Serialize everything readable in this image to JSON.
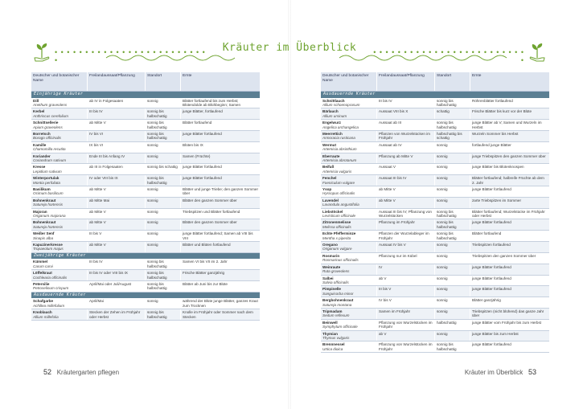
{
  "header": {
    "title": "Kräuter im Überblick"
  },
  "columns": [
    "Deutscher und botanischer Name",
    "Freilandaussaat/Pflanzung",
    "Standort",
    "Ernte"
  ],
  "left": {
    "sections": [
      {
        "label": "Einjährige Kräuter",
        "rows": [
          {
            "name": "Dill",
            "latin": "Anethum graveolens",
            "sow": "ab IV in Folgesaaten",
            "site": "sonnig",
            "harvest": "Blätter fortlaufend bis zum Herbst; Blütendolde ab Blühbeginn; Samen"
          },
          {
            "name": "Kerbel",
            "latin": "Anthriscus cerefolium",
            "sow": "III bis IV",
            "site": "sonnig bis halbschattig",
            "harvest": "junge Blätter, fortlaufend"
          },
          {
            "name": "Schnittsellerie",
            "latin": "Apium graveolens",
            "sow": "ab Mitte V",
            "site": "sonnig bis halbschattig",
            "harvest": "Blätter fortlaufend"
          },
          {
            "name": "Borretsch",
            "latin": "Borago officinalis",
            "sow": "IV bis VI",
            "site": "sonnig bis halbschattig",
            "harvest": "junge Blätter fortlaufend"
          },
          {
            "name": "Kamille",
            "latin": "Chamomilla recutita",
            "sow": "IX bis VI",
            "site": "sonnig",
            "harvest": "Blüten bis IX"
          },
          {
            "name": "Koriander",
            "latin": "Coriandrum sativum",
            "sow": "Ende III bis Anfang IV",
            "site": "sonnig",
            "harvest": "Samen (Früchte)"
          },
          {
            "name": "Kresse",
            "latin": "Lepidium sativum",
            "sow": "ab III in Folgesaaten",
            "site": "sonnig bis schattig",
            "harvest": "junge Blätter fortlaufend"
          },
          {
            "name": "Winterportulak",
            "latin": "Montia perfoliata",
            "sow": "IV oder VIII bis IX",
            "site": "sonnig bis halbschattig",
            "harvest": "junge Blätter fortlaufend"
          },
          {
            "name": "Basilikum",
            "latin": "Ocimum basilicum",
            "sow": "ab Mitte V",
            "site": "sonnig",
            "harvest": "Blätter und junge Triebe; den ganzen Sommer über"
          },
          {
            "name": "Bohnenkraut",
            "latin": "Satureja hortensis",
            "sow": "ab Mitte Mai",
            "site": "sonnig",
            "harvest": "Blätter den ganzen Sommer über"
          },
          {
            "name": "Majoran",
            "latin": "Origanum majorana",
            "sow": "ab Mitte V",
            "site": "sonnig",
            "harvest": "Triebspitzen und Blätter fortlaufend"
          },
          {
            "name": "Bohnenkraut",
            "latin": "Satureja hortensis",
            "sow": "ab Mitte V",
            "site": "sonnig",
            "harvest": "Blätter den ganzen Sommer über"
          },
          {
            "name": "Weißer Senf",
            "latin": "Sinapis alba",
            "sow": "III bis V",
            "site": "sonnig",
            "harvest": "junge Blätter fortlaufend; Samen ab VIII bis VIII"
          },
          {
            "name": "Kapuzinerkresse",
            "latin": "Tropaeolum majus",
            "sow": "ab Mitte V",
            "site": "sonnig",
            "harvest": "Blätter und Blüten fortlaufend"
          }
        ]
      },
      {
        "label": "Zweijährige Kräuter",
        "rows": [
          {
            "name": "Kümmel",
            "latin": "Carum carvi",
            "sow": "III bis IV",
            "site": "sonnig bis halbschattig",
            "harvest": "Samen VI bis VII im 2. Jahr"
          },
          {
            "name": "Löffelkraut",
            "latin": "Cochlearia officinalis",
            "sow": "III bis IV oder VIII bis IX",
            "site": "sonnig bis halbschattig",
            "harvest": "Frische Blätter ganzjährig"
          },
          {
            "name": "Petersilie",
            "latin": "Petroselinum crispum",
            "sow": "April/Mai oder Juli/August",
            "site": "sonnig bis halbschattig",
            "harvest": "Blätter ab Juni bis zur Blüte"
          }
        ]
      },
      {
        "label": "Ausdauernde Kräuter",
        "rows": [
          {
            "name": "Schafgarbe",
            "latin": "Achillea millefolium",
            "sow": "April/Mai",
            "site": "sonnig",
            "harvest": "während der Blüte junge Blätter, ganzes Kraut zum Trocknen"
          },
          {
            "name": "Knoblauch",
            "latin": "Allium millefolia",
            "sow": "Stecken der Zehen im Frühjahr oder Herbst",
            "site": "sonnig bis halbschattig",
            "harvest": "Knolle im Frühjahr oder Sommer nach dem Stecken"
          }
        ]
      }
    ]
  },
  "right": {
    "sections": [
      {
        "label": "Ausdauernde Kräuter",
        "rows": [
          {
            "name": "Schnittlauch",
            "latin": "Allium schoenoprasum",
            "sow": "III bis IV",
            "site": "sonnig bis halbschattig",
            "harvest": "Röhrenblätter fortlaufend"
          },
          {
            "name": "Bärlauch",
            "latin": "Allium ursinum",
            "sow": "Aussaat VIII bis X",
            "site": "schattig",
            "harvest": "Frische Blätter bis kurz vor der Blüte"
          },
          {
            "name": "Engelwurz",
            "latin": "Angelica archangelica",
            "sow": "Aussaat ab III",
            "site": "sonnig bis halbschattig",
            "harvest": "junge Blätter ab V; Samen und Wurzeln im Herbst"
          },
          {
            "name": "Meerrettich",
            "latin": "Armoracia rusticana",
            "sow": "Pflanzen von Wurzelstücken im Frühjahr",
            "site": "halbschattig bis schattig",
            "harvest": "Wurzeln Sommer bis Herbst"
          },
          {
            "name": "Wermut",
            "latin": "Artemisia absinthium",
            "sow": "Aussaat ab IV",
            "site": "sonnig",
            "harvest": "fortlaufend junge Blätter"
          },
          {
            "name": "Eberraute",
            "latin": "Artemisia abrotanum",
            "sow": "Pflanzung ab Mitte V",
            "site": "sonnig",
            "harvest": "junge Triebspitzen den ganzen Sommer über"
          },
          {
            "name": "Beifuß",
            "latin": "Artemisia vulgaris",
            "sow": "Aussaat V",
            "site": "sonnig",
            "harvest": "junge Blätter bis Blütenknospen"
          },
          {
            "name": "Fenchel",
            "latin": "Foeniculum vulgare",
            "sow": "Aussaat III bis IV",
            "site": "sonnig",
            "harvest": "Blätter fortlaufend; halbreife Früchte ab dem 2. Jahr"
          },
          {
            "name": "Ysop",
            "latin": "Hyssopus officinalis",
            "sow": "ab Mitte V",
            "site": "sonnig",
            "harvest": "junge Blätter fortlaufend"
          },
          {
            "name": "Lavendel",
            "latin": "Lavandula angustifolia",
            "sow": "ab Mitte V",
            "site": "sonnig",
            "harvest": "zarte Triebspitzen im Sommer"
          },
          {
            "name": "Liebstöckel",
            "latin": "Levisticum officinale",
            "sow": "Aussaat III bis IV; Pflanzung von Wurzelstücken",
            "site": "sonnig bis halbschattig",
            "harvest": "Blätter fortlaufend; Wurzelstücke im Frühjahr oder Herbst"
          },
          {
            "name": "Zitronenmelisse",
            "latin": "Melissa officinalis",
            "sow": "Pflanzung im Frühjahr",
            "site": "sonnig bis halbschattig",
            "harvest": "junge Blätter fortlaufend"
          },
          {
            "name": "Echte Pfefferminze",
            "latin": "Mentha x piperita",
            "sow": "Pflanzen der Wurzelableger im Frühjahr",
            "site": "sonnig bis halbschattig",
            "harvest": "Blätter fortlaufend"
          },
          {
            "name": "Oregano",
            "latin": "Origanum vulgare",
            "sow": "Aussaat IV bis V",
            "site": "sonnig",
            "harvest": "Triebspitzen fortlaufend"
          },
          {
            "name": "Rosmarin",
            "latin": "Rosmarinus officinalis",
            "sow": "Pflanzung nur im Kübel",
            "site": "sonnig",
            "harvest": "Triebspitzen den ganzen Sommer über"
          },
          {
            "name": "Weinraute",
            "latin": "Ruta graveolens",
            "sow": "IV",
            "site": "sonnig",
            "harvest": "junge Blätter fortlaufend"
          },
          {
            "name": "Salbei",
            "latin": "Salvia officinalis",
            "sow": "ab V",
            "site": "sonnig",
            "harvest": "junge Blätter fortlaufend"
          },
          {
            "name": "Pimpinelle",
            "latin": "Sanguisorba minor",
            "sow": "III bis V",
            "site": "sonnig",
            "harvest": "junge Blätter fortlaufend"
          },
          {
            "name": "Bergbohnenkraut",
            "latin": "Satureja montana",
            "sow": "IV bis V",
            "site": "sonnig",
            "harvest": "Blätter ganzjährig"
          },
          {
            "name": "Tripmadam",
            "latin": "Sedum reflexum",
            "sow": "Samen im Frühjahr",
            "site": "sonnig",
            "harvest": "Triebspitzen (nicht blühend) das ganze Jahr über"
          },
          {
            "name": "Beinwell",
            "latin": "Symphytum officinale",
            "sow": "Pflanzung von Wurzelstücken im Frühjahr",
            "site": "halbschattig",
            "harvest": "junge Blätter vom Frühjahr bis zum Herbst"
          },
          {
            "name": "Thymian",
            "latin": "Thymus vulgaris",
            "sow": "ab V",
            "site": "sonnig",
            "harvest": "junge Blätter bis zum Herbst"
          },
          {
            "name": "Brennnessel",
            "latin": "Urtica dioica",
            "sow": "Pflanzung von Wurzelstücken im Frühjahr",
            "site": "sonnig bis halbschattig",
            "harvest": "junge Blätter fortlaufend"
          }
        ]
      }
    ]
  },
  "footer": {
    "left_num": "52",
    "left_label": "Kräutergarten pflegen",
    "right_label": "Kräuter im Überblick",
    "right_num": "53"
  },
  "colors": {
    "accent": "#6ea32f",
    "header_bg": "#dde4ef",
    "section_bg": "#5b7f93",
    "alt_row": "#eef2f7"
  }
}
